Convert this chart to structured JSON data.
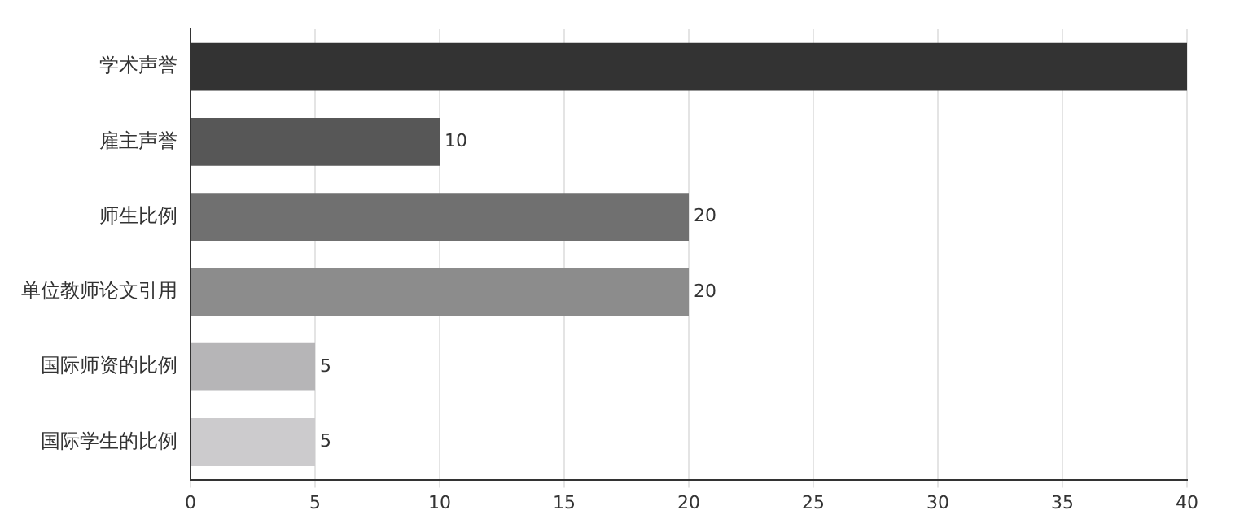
{
  "chart_data": {
    "type": "bar",
    "orientation": "horizontal",
    "categories": [
      "学术声誉",
      "雇主声誉",
      "师生比例",
      "单位教师论文引用",
      "国际师资的比例",
      "国际学生的比例"
    ],
    "values": [
      40,
      10,
      20,
      20,
      5,
      5
    ],
    "colors": [
      "#333333",
      "#575757",
      "#707070",
      "#8c8c8c",
      "#b6b5b7",
      "#cccbcd"
    ],
    "value_labels": [
      null,
      "10",
      "20",
      "20",
      "5",
      "5"
    ],
    "xlim": [
      0,
      40
    ],
    "xticks": [
      0,
      5,
      10,
      15,
      20,
      25,
      30,
      35,
      40
    ],
    "grid": "x",
    "legend": false
  }
}
